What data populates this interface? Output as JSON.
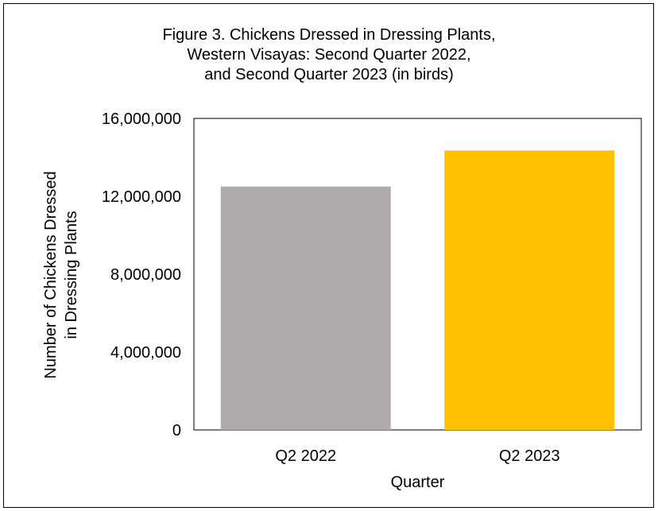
{
  "chart_data": {
    "type": "bar",
    "title_lines": [
      "Figure 3. Chickens Dressed in Dressing Plants,",
      "Western Visayas: Second Quarter 2022,",
      "and Second Quarter 2023 (in birds)"
    ],
    "categories": [
      "Q2 2022",
      "Q2 2023"
    ],
    "values": [
      12500000,
      14350000
    ],
    "bar_colors": [
      "#AEAAAA",
      "#FFC000"
    ],
    "xlabel": "Quarter",
    "ylabel_lines": [
      "Number of Chickens Dressed",
      "in Dressing Plants"
    ],
    "ylim": [
      0,
      16000000
    ],
    "yticks": [
      0,
      4000000,
      8000000,
      12000000,
      16000000
    ],
    "ytick_labels": [
      "0",
      "4,000,000",
      "8,000,000",
      "12,000,000",
      "16,000,000"
    ],
    "grid": false,
    "legend": "none"
  }
}
